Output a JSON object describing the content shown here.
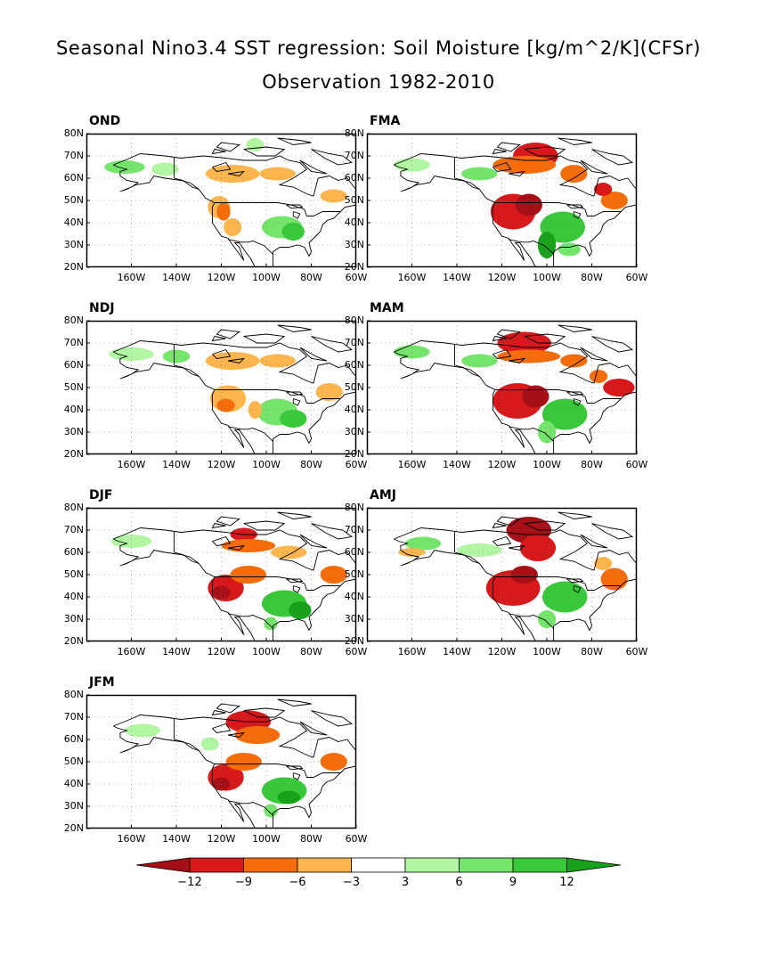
{
  "header": {
    "title": "Seasonal Nino3.4 SST regression: Soil Moisture [kg/m^2/K](CFSr)",
    "subtitle": "Observation 1982-2010"
  },
  "map_axes": {
    "lat_labels": [
      "80N",
      "70N",
      "60N",
      "50N",
      "40N",
      "30N",
      "20N"
    ],
    "lon_labels": [
      "160W",
      "140W",
      "120W",
      "100W",
      "80W",
      "60W"
    ],
    "lon_range": [
      "180W",
      "60W"
    ],
    "lat_range": [
      "20N",
      "80N"
    ]
  },
  "panels": [
    {
      "label": "OND"
    },
    {
      "label": "FMA"
    },
    {
      "label": "NDJ"
    },
    {
      "label": "MAM"
    },
    {
      "label": "DJF"
    },
    {
      "label": "AMJ"
    },
    {
      "label": "JFM"
    }
  ],
  "colorbar": {
    "ticks": [
      "-12",
      "-9",
      "-6",
      "-3",
      "3",
      "6",
      "9",
      "12"
    ],
    "colors": [
      "#a50f15",
      "#d7191c",
      "#f46d0a",
      "#fdb64e",
      "#ffffff",
      "#b2f5a2",
      "#74e46a",
      "#38c83a",
      "#18a11a"
    ]
  },
  "legend_colors": {
    "land_outline": "#000000",
    "grid": "#777777"
  }
}
